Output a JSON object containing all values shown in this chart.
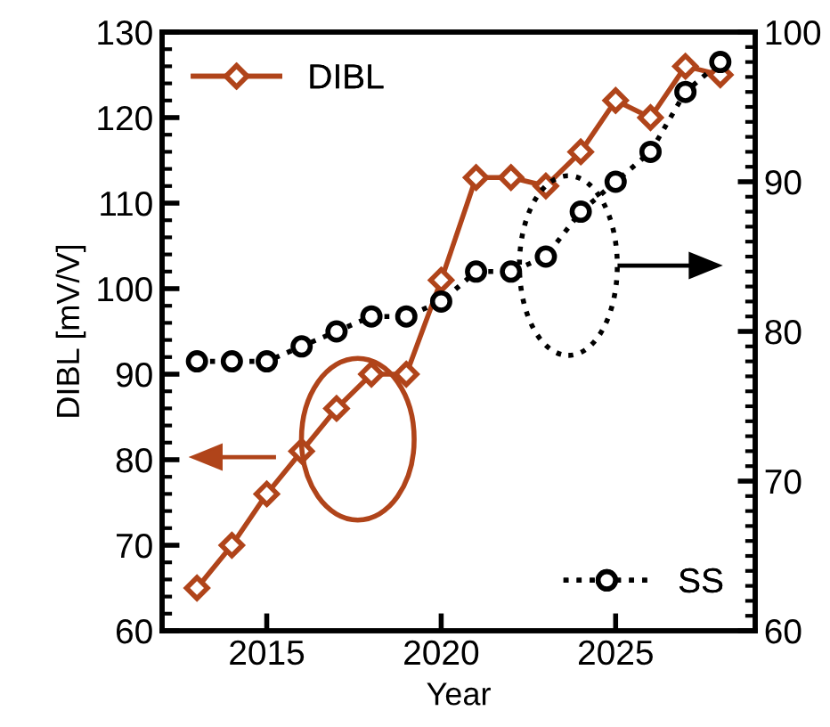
{
  "chart_data": {
    "type": "line",
    "xlabel": "Year",
    "ylabel": "DIBL [mV/V]",
    "x": [
      2013,
      2014,
      2015,
      2016,
      2017,
      2018,
      2019,
      2020,
      2021,
      2022,
      2023,
      2024,
      2025,
      2026,
      2027,
      2028
    ],
    "xlim": [
      2012,
      2029
    ],
    "xticks": [
      2015,
      2020,
      2025
    ],
    "ylim": [
      60,
      130
    ],
    "yticks": [
      60,
      70,
      80,
      90,
      100,
      110,
      120,
      130
    ],
    "y2lim": [
      60,
      100
    ],
    "y2ticks": [
      60,
      70,
      80,
      90,
      100
    ],
    "grid": false,
    "legend": "top left",
    "series": [
      {
        "name": "DIBL",
        "color": "#b0441a",
        "marker": "diamond",
        "line_style": "solid",
        "values": [
          65,
          70,
          76,
          81,
          86,
          90,
          90,
          101,
          113,
          113,
          112,
          116,
          122,
          120,
          126,
          125
        ]
      },
      {
        "name": "SS",
        "color": "#000000",
        "marker": "circle",
        "line_style": "dotted",
        "axis": "y2",
        "values": [
          78,
          78,
          78,
          79,
          80,
          81,
          81,
          82,
          84,
          84,
          85,
          88,
          90,
          92,
          96,
          98
        ]
      }
    ]
  }
}
